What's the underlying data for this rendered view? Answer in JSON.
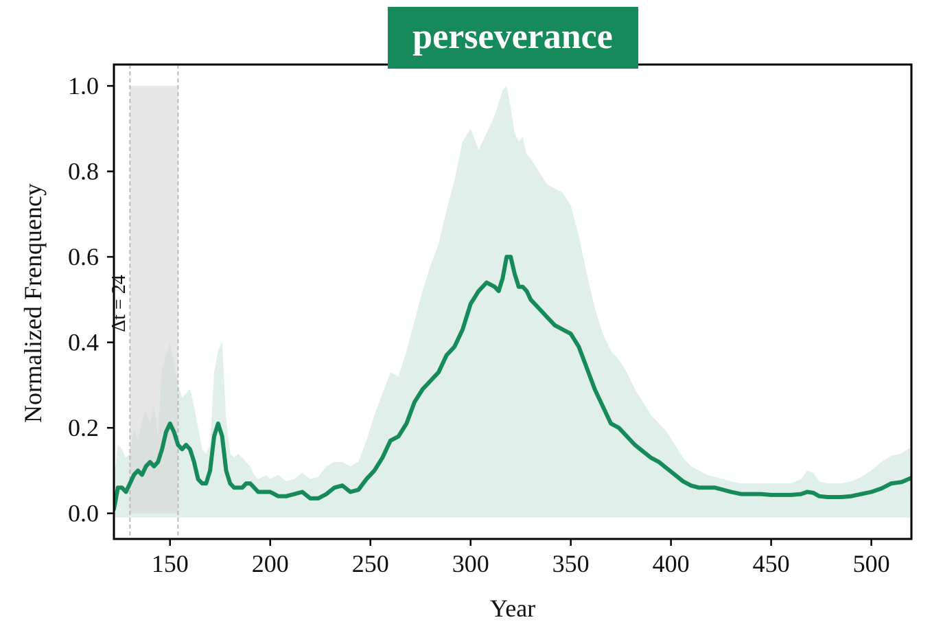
{
  "colors": {
    "main": "#168a5b",
    "band": "#e0efe9",
    "highlight": "#d6d6d6",
    "axis": "#000000"
  },
  "chart_data": {
    "type": "line",
    "title": "perseverance",
    "xlabel": "Year",
    "ylabel": "Normalized Frenquency",
    "xlim": [
      122,
      520
    ],
    "ylim": [
      -0.06,
      1.05
    ],
    "xticks": [
      150,
      200,
      250,
      300,
      350,
      400,
      450,
      500
    ],
    "yticks": [
      0.0,
      0.2,
      0.4,
      0.6,
      0.8,
      1.0
    ],
    "ytick_labels": [
      "0.0",
      "0.2",
      "0.4",
      "0.6",
      "0.8",
      "1.0"
    ],
    "grid": false,
    "highlight": {
      "x_start": 130,
      "x_end": 154,
      "y_top": 1.0,
      "label": "Δt = 24"
    },
    "series": [
      {
        "style": "line",
        "x": [
          122,
          124,
          126,
          128,
          130,
          132,
          134,
          136,
          138,
          140,
          142,
          144,
          146,
          148,
          150,
          152,
          154,
          156,
          158,
          160,
          162,
          164,
          166,
          168,
          170,
          172,
          174,
          176,
          178,
          180,
          182,
          184,
          186,
          188,
          190,
          192,
          194,
          196,
          198,
          200,
          204,
          208,
          212,
          216,
          220,
          224,
          228,
          232,
          236,
          240,
          244,
          248,
          252,
          256,
          260,
          264,
          268,
          272,
          276,
          280,
          284,
          288,
          292,
          296,
          300,
          304,
          308,
          312,
          314,
          316,
          318,
          320,
          322,
          324,
          326,
          328,
          330,
          334,
          338,
          342,
          346,
          350,
          354,
          358,
          362,
          366,
          370,
          374,
          378,
          382,
          386,
          390,
          394,
          398,
          402,
          406,
          410,
          414,
          418,
          422,
          426,
          430,
          435,
          440,
          445,
          450,
          455,
          460,
          465,
          468,
          471,
          474,
          478,
          485,
          490,
          495,
          500,
          505,
          510,
          515,
          520
        ],
        "y": [
          0.01,
          0.06,
          0.06,
          0.05,
          0.07,
          0.09,
          0.1,
          0.09,
          0.11,
          0.12,
          0.11,
          0.12,
          0.15,
          0.19,
          0.21,
          0.19,
          0.16,
          0.15,
          0.16,
          0.15,
          0.12,
          0.08,
          0.07,
          0.07,
          0.1,
          0.18,
          0.21,
          0.18,
          0.1,
          0.07,
          0.06,
          0.06,
          0.06,
          0.07,
          0.07,
          0.06,
          0.05,
          0.05,
          0.05,
          0.05,
          0.04,
          0.04,
          0.045,
          0.05,
          0.035,
          0.035,
          0.045,
          0.06,
          0.065,
          0.05,
          0.055,
          0.08,
          0.1,
          0.13,
          0.17,
          0.18,
          0.21,
          0.26,
          0.29,
          0.31,
          0.33,
          0.37,
          0.39,
          0.43,
          0.49,
          0.52,
          0.54,
          0.53,
          0.52,
          0.55,
          0.6,
          0.6,
          0.56,
          0.53,
          0.53,
          0.52,
          0.5,
          0.48,
          0.46,
          0.44,
          0.43,
          0.42,
          0.39,
          0.34,
          0.29,
          0.25,
          0.21,
          0.2,
          0.18,
          0.16,
          0.145,
          0.13,
          0.12,
          0.105,
          0.09,
          0.075,
          0.065,
          0.06,
          0.06,
          0.06,
          0.055,
          0.05,
          0.045,
          0.045,
          0.045,
          0.043,
          0.043,
          0.043,
          0.045,
          0.05,
          0.048,
          0.04,
          0.038,
          0.038,
          0.04,
          0.045,
          0.05,
          0.058,
          0.07,
          0.073,
          0.083
        ]
      },
      {
        "style": "band",
        "x": [
          122,
          124,
          126,
          128,
          130,
          132,
          134,
          136,
          138,
          140,
          142,
          144,
          146,
          148,
          150,
          152,
          154,
          156,
          158,
          160,
          162,
          164,
          166,
          168,
          170,
          172,
          174,
          176,
          178,
          180,
          182,
          184,
          186,
          188,
          190,
          192,
          194,
          196,
          198,
          200,
          204,
          208,
          212,
          216,
          220,
          224,
          228,
          232,
          236,
          240,
          244,
          248,
          252,
          256,
          260,
          264,
          268,
          272,
          276,
          280,
          284,
          288,
          292,
          296,
          300,
          304,
          308,
          312,
          314,
          316,
          318,
          320,
          322,
          324,
          326,
          328,
          330,
          334,
          338,
          342,
          346,
          350,
          354,
          358,
          362,
          366,
          370,
          374,
          378,
          382,
          386,
          390,
          394,
          398,
          402,
          406,
          410,
          414,
          418,
          422,
          426,
          430,
          435,
          440,
          445,
          450,
          455,
          460,
          465,
          468,
          471,
          474,
          478,
          485,
          490,
          495,
          500,
          505,
          510,
          515,
          520
        ],
        "upper": [
          0.08,
          0.16,
          0.15,
          0.13,
          0.14,
          0.2,
          0.17,
          0.22,
          0.24,
          0.21,
          0.25,
          0.18,
          0.34,
          0.37,
          0.4,
          0.35,
          0.3,
          0.27,
          0.28,
          0.29,
          0.25,
          0.2,
          0.15,
          0.14,
          0.16,
          0.33,
          0.38,
          0.4,
          0.22,
          0.14,
          0.13,
          0.14,
          0.13,
          0.12,
          0.11,
          0.09,
          0.08,
          0.085,
          0.09,
          0.08,
          0.09,
          0.075,
          0.08,
          0.095,
          0.08,
          0.085,
          0.11,
          0.12,
          0.12,
          0.11,
          0.12,
          0.17,
          0.23,
          0.28,
          0.33,
          0.32,
          0.38,
          0.45,
          0.52,
          0.58,
          0.63,
          0.71,
          0.78,
          0.87,
          0.9,
          0.85,
          0.89,
          0.93,
          0.96,
          0.99,
          1.0,
          0.95,
          0.89,
          0.87,
          0.88,
          0.84,
          0.83,
          0.8,
          0.77,
          0.76,
          0.75,
          0.72,
          0.65,
          0.56,
          0.48,
          0.42,
          0.38,
          0.36,
          0.33,
          0.29,
          0.26,
          0.23,
          0.21,
          0.19,
          0.16,
          0.13,
          0.11,
          0.1,
          0.09,
          0.085,
          0.08,
          0.075,
          0.07,
          0.07,
          0.07,
          0.07,
          0.07,
          0.07,
          0.08,
          0.1,
          0.095,
          0.075,
          0.07,
          0.07,
          0.075,
          0.085,
          0.1,
          0.12,
          0.135,
          0.14,
          0.155
        ],
        "lower": [
          -0.01,
          -0.01,
          -0.01,
          -0.01,
          -0.01,
          -0.01,
          -0.01,
          -0.01,
          -0.01,
          -0.01,
          -0.01,
          -0.01,
          -0.01,
          -0.01,
          -0.01,
          -0.01,
          -0.01,
          -0.01,
          -0.01,
          -0.01,
          -0.01,
          -0.01,
          -0.01,
          -0.01,
          -0.01,
          -0.01,
          -0.01,
          -0.01,
          -0.01,
          -0.01,
          -0.01,
          -0.01,
          -0.01,
          -0.01,
          -0.01,
          -0.01,
          -0.01,
          -0.01,
          -0.01,
          -0.01,
          -0.01,
          -0.01,
          -0.01,
          -0.01,
          -0.01,
          -0.01,
          -0.01,
          -0.01,
          -0.01,
          -0.01,
          -0.01,
          -0.01,
          -0.01,
          -0.01,
          -0.01,
          -0.01,
          -0.01,
          -0.01,
          -0.01,
          -0.01,
          -0.01,
          -0.01,
          -0.01,
          -0.01,
          -0.01,
          -0.01,
          -0.01,
          -0.01,
          -0.01,
          -0.01,
          -0.01,
          -0.01,
          -0.01,
          -0.01,
          -0.01,
          -0.01,
          -0.01,
          -0.01,
          -0.01,
          -0.01,
          -0.01,
          -0.01,
          -0.01,
          -0.01,
          -0.01,
          -0.01,
          -0.01,
          -0.01,
          -0.01,
          -0.01,
          -0.01,
          -0.01,
          -0.01,
          -0.01,
          -0.01,
          -0.01,
          -0.01,
          -0.01,
          -0.01,
          -0.01,
          -0.01,
          -0.01,
          -0.01,
          -0.01,
          -0.01,
          -0.01,
          -0.01,
          -0.01,
          -0.01,
          -0.01,
          -0.01,
          -0.01,
          -0.01,
          -0.01,
          -0.01,
          -0.01,
          -0.01,
          -0.01,
          -0.01,
          -0.01,
          -0.01
        ]
      }
    ]
  }
}
